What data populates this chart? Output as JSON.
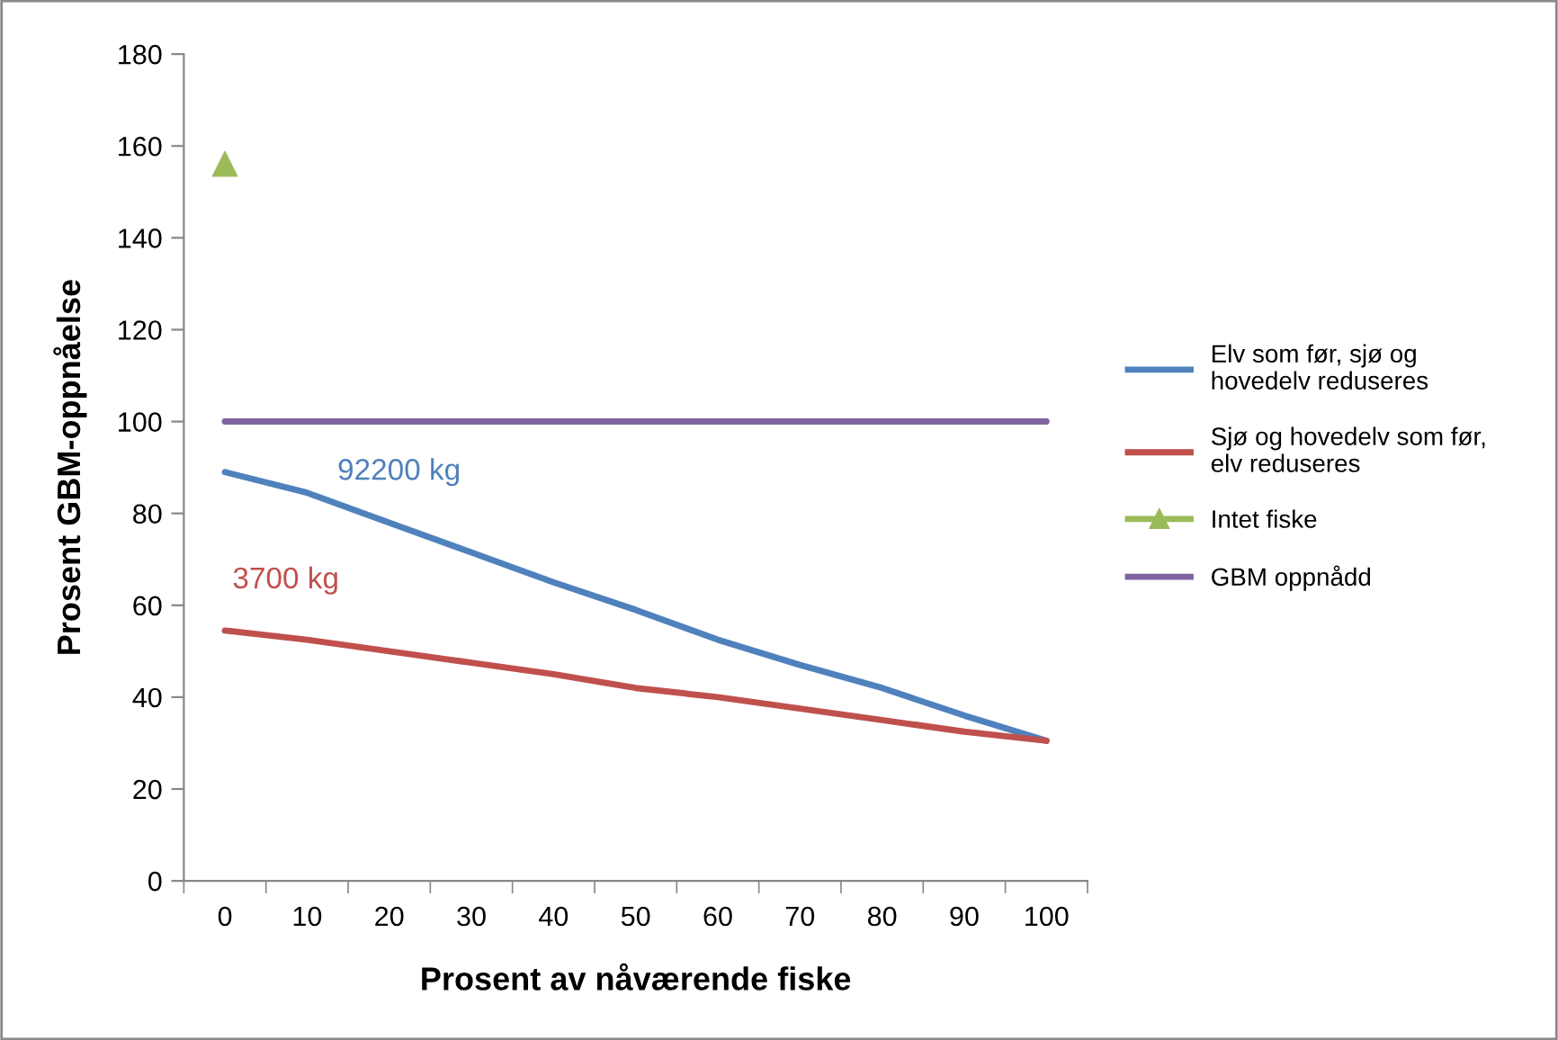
{
  "chart_data": {
    "type": "line",
    "xlabel": "Prosent av nåværende fiske",
    "ylabel": "Prosent GBM-oppnåelse",
    "categories": [
      "0",
      "10",
      "20",
      "30",
      "40",
      "50",
      "60",
      "70",
      "80",
      "90",
      "100"
    ],
    "series": [
      {
        "name": "Elv som før, sjø og hovedelv reduseres",
        "color": "#4f81bd",
        "marker": "none",
        "values": [
          89,
          84.5,
          78,
          71.5,
          65,
          59,
          52.5,
          47,
          42,
          36,
          30.5
        ]
      },
      {
        "name": "Sjø og hovedelv som før, elv reduseres",
        "color": "#c0504d",
        "marker": "none",
        "values": [
          54.5,
          52.5,
          50,
          47.5,
          45,
          42,
          40,
          37.5,
          35,
          32.5,
          30.5
        ]
      },
      {
        "name": "Intet fiske",
        "color": "#9bbb59",
        "marker": "triangle",
        "values": [
          156,
          null,
          null,
          null,
          null,
          null,
          null,
          null,
          null,
          null,
          null
        ]
      },
      {
        "name": "GBM oppnådd",
        "color": "#8064a2",
        "marker": "none",
        "values": [
          100,
          100,
          100,
          100,
          100,
          100,
          100,
          100,
          100,
          100,
          100
        ]
      }
    ],
    "annotations": [
      "92200 kg",
      "3700 kg"
    ],
    "ylim": [
      0,
      180
    ],
    "yticks": [
      0,
      20,
      40,
      60,
      80,
      100,
      120,
      140,
      160,
      180
    ],
    "grid": false,
    "legend": "right"
  }
}
